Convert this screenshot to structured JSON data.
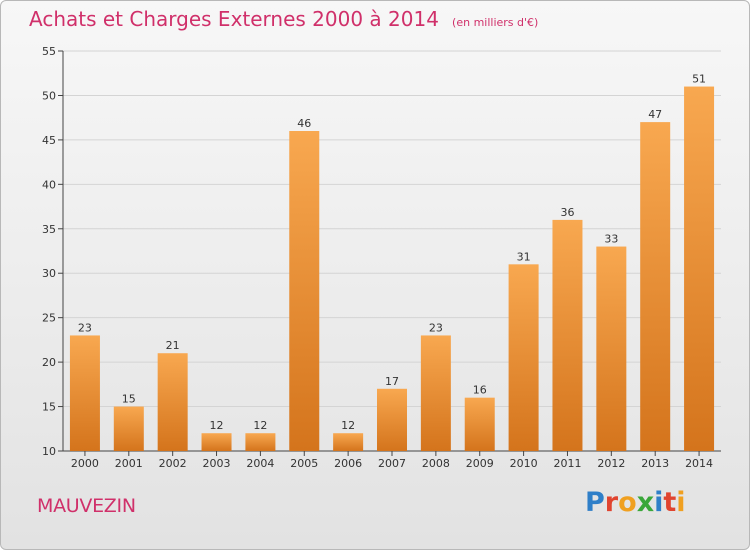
{
  "header": {
    "title": "Achats et Charges Externes 2000 à 2014",
    "unit": "(en milliers d'€)"
  },
  "footer": {
    "town": "MAUVEZIN",
    "brand": "Proxiti",
    "brand_letter_colors": [
      "#2f7fc8",
      "#e0442f",
      "#f0a020",
      "#3aa73a",
      "#2f7fc8",
      "#e0442f",
      "#f0a020"
    ]
  },
  "colors": {
    "bar_top": "#f8a850",
    "bar_bottom": "#d4741c",
    "title": "#d0306a",
    "grid": "#d4d4d4"
  },
  "chart_data": {
    "type": "bar",
    "title": "Achats et Charges Externes 2000 à 2014",
    "subtitle": "(en milliers d'€)",
    "categories": [
      "2000",
      "2001",
      "2002",
      "2003",
      "2004",
      "2005",
      "2006",
      "2007",
      "2008",
      "2009",
      "2010",
      "2011",
      "2012",
      "2013",
      "2014"
    ],
    "values": [
      23,
      15,
      21,
      12,
      12,
      46,
      12,
      17,
      23,
      16,
      31,
      36,
      33,
      47,
      51
    ],
    "ylim": [
      10,
      55
    ],
    "yticks": [
      10,
      15,
      20,
      25,
      30,
      35,
      40,
      45,
      50,
      55
    ],
    "grid": true,
    "data_labels": true
  }
}
